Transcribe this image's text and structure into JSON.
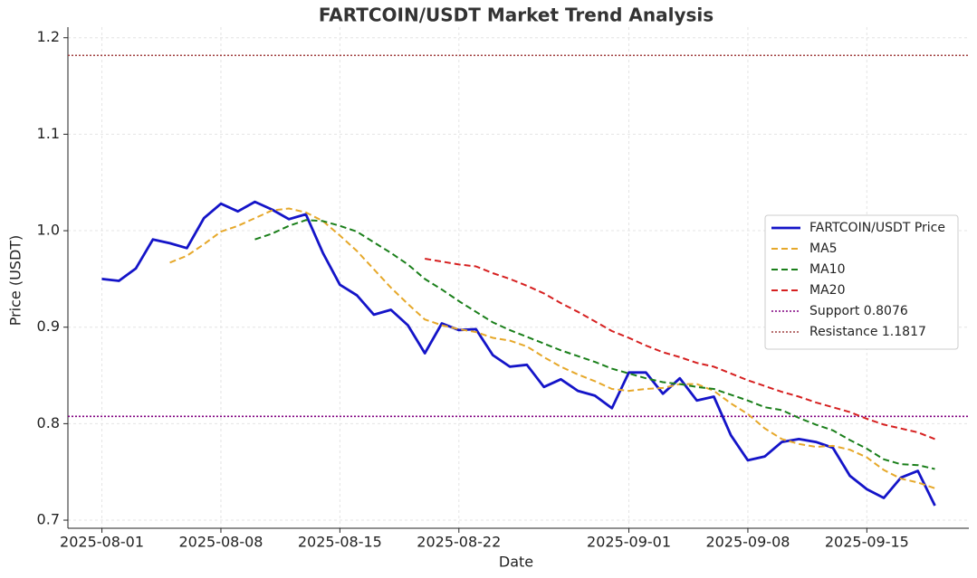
{
  "chart_data": {
    "type": "line",
    "title": "FARTCOIN/USDT Market Trend Analysis",
    "x_label": "Date",
    "y_label": "Price (USDT)",
    "x": [
      "2025-08-01",
      "2025-08-02",
      "2025-08-03",
      "2025-08-04",
      "2025-08-05",
      "2025-08-06",
      "2025-08-07",
      "2025-08-08",
      "2025-08-09",
      "2025-08-10",
      "2025-08-11",
      "2025-08-12",
      "2025-08-13",
      "2025-08-14",
      "2025-08-15",
      "2025-08-16",
      "2025-08-17",
      "2025-08-18",
      "2025-08-19",
      "2025-08-20",
      "2025-08-21",
      "2025-08-22",
      "2025-08-23",
      "2025-08-24",
      "2025-08-25",
      "2025-08-26",
      "2025-08-27",
      "2025-08-28",
      "2025-08-29",
      "2025-08-30",
      "2025-08-31",
      "2025-09-01",
      "2025-09-02",
      "2025-09-03",
      "2025-09-04",
      "2025-09-05",
      "2025-09-06",
      "2025-09-07",
      "2025-09-08",
      "2025-09-09",
      "2025-09-10",
      "2025-09-11",
      "2025-09-12",
      "2025-09-13",
      "2025-09-14",
      "2025-09-15",
      "2025-09-16",
      "2025-09-17",
      "2025-09-18",
      "2025-09-19"
    ],
    "series": [
      {
        "name": "FARTCOIN/USDT Price",
        "color": "#1414c8",
        "style": "solid",
        "values": [
          0.95,
          0.948,
          0.961,
          0.991,
          0.987,
          0.982,
          1.013,
          1.028,
          1.02,
          1.03,
          1.022,
          1.012,
          1.017,
          0.977,
          0.944,
          0.933,
          0.913,
          0.918,
          0.902,
          0.873,
          0.904,
          0.897,
          0.898,
          0.871,
          0.859,
          0.861,
          0.838,
          0.846,
          0.834,
          0.829,
          0.816,
          0.853,
          0.853,
          0.831,
          0.847,
          0.824,
          0.828,
          0.788,
          0.762,
          0.766,
          0.781,
          0.784,
          0.781,
          0.775,
          0.746,
          0.732,
          0.723,
          0.744,
          0.751,
          0.715
        ]
      },
      {
        "name": "MA5",
        "color": "#e6a82a",
        "style": "dashed",
        "values": [
          null,
          null,
          null,
          null,
          0.967,
          0.974,
          0.986,
          0.999,
          1.005,
          1.013,
          1.021,
          1.023,
          1.019,
          1.01,
          0.995,
          0.979,
          0.96,
          0.941,
          0.924,
          0.908,
          0.902,
          0.898,
          0.895,
          0.889,
          0.886,
          0.88,
          0.869,
          0.859,
          0.851,
          0.844,
          0.836,
          0.834,
          0.836,
          0.837,
          0.841,
          0.841,
          0.834,
          0.821,
          0.81,
          0.795,
          0.784,
          0.779,
          0.776,
          0.777,
          0.773,
          0.765,
          0.752,
          0.743,
          0.739,
          0.733
        ]
      },
      {
        "name": "MA10",
        "color": "#1a7f1a",
        "style": "dashed",
        "values": [
          null,
          null,
          null,
          null,
          null,
          null,
          null,
          null,
          null,
          0.991,
          0.997,
          1.005,
          1.011,
          1.01,
          1.005,
          0.999,
          0.988,
          0.977,
          0.965,
          0.95,
          0.939,
          0.927,
          0.916,
          0.905,
          0.897,
          0.89,
          0.883,
          0.876,
          0.87,
          0.864,
          0.857,
          0.852,
          0.847,
          0.843,
          0.841,
          0.838,
          0.836,
          0.83,
          0.824,
          0.817,
          0.814,
          0.806,
          0.799,
          0.793,
          0.783,
          0.774,
          0.763,
          0.758,
          0.757,
          0.753
        ]
      },
      {
        "name": "MA20",
        "color": "#d62020",
        "style": "dashed",
        "values": [
          null,
          null,
          null,
          null,
          null,
          null,
          null,
          null,
          null,
          null,
          null,
          null,
          null,
          null,
          null,
          null,
          null,
          null,
          null,
          0.971,
          0.968,
          0.965,
          0.963,
          0.956,
          0.95,
          0.943,
          0.935,
          0.925,
          0.916,
          0.906,
          0.896,
          0.889,
          0.881,
          0.874,
          0.869,
          0.863,
          0.859,
          0.852,
          0.845,
          0.839,
          0.833,
          0.828,
          0.822,
          0.817,
          0.812,
          0.805,
          0.799,
          0.795,
          0.791,
          0.784
        ]
      }
    ],
    "hlines": [
      {
        "name": "Support 0.8076",
        "value": 0.8076,
        "color": "#800080",
        "style": "dotted"
      },
      {
        "name": "Resistance 1.1817",
        "value": 1.1817,
        "color": "#a04040",
        "style": "dotted"
      }
    ],
    "xlim": [
      "2025-07-30",
      "2025-09-21"
    ],
    "xticks": [
      "2025-08-01",
      "2025-08-08",
      "2025-08-15",
      "2025-08-22",
      "2025-09-01",
      "2025-09-08",
      "2025-09-15"
    ],
    "ylim": [
      0.6916,
      1.211
    ],
    "yticks": [
      0.7,
      0.8,
      0.9,
      {
        "value": 1,
        "label": "1.0"
      },
      1.1,
      1.2
    ],
    "grid": true,
    "legend": "right"
  }
}
